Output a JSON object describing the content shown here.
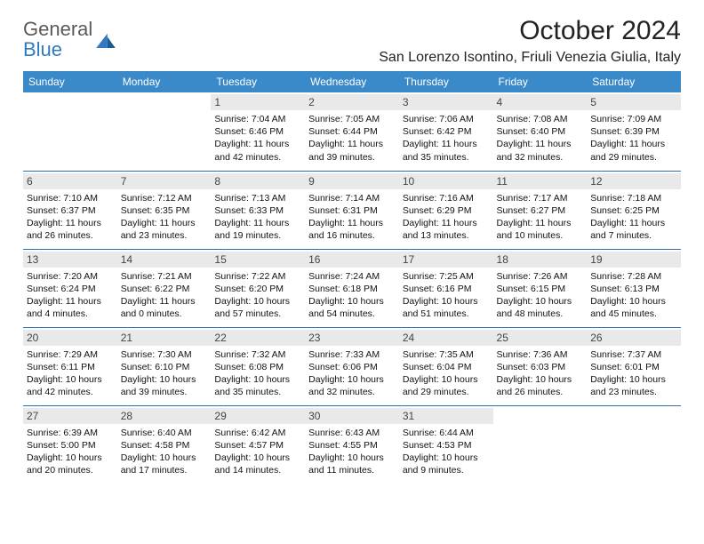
{
  "logo": {
    "text_general": "General",
    "text_blue": "Blue"
  },
  "title": "October 2024",
  "location": "San Lorenzo Isontino, Friuli Venezia Giulia, Italy",
  "colors": {
    "header_bg": "#3a89c9",
    "header_text": "#ffffff",
    "row_separator": "#2f6ea8",
    "daynum_bg": "#e9e9e9",
    "body_text": "#111111",
    "logo_general": "#5a5a5a",
    "logo_blue": "#2f7ac0"
  },
  "weekdays": [
    "Sunday",
    "Monday",
    "Tuesday",
    "Wednesday",
    "Thursday",
    "Friday",
    "Saturday"
  ],
  "weeks": [
    [
      null,
      null,
      {
        "day": "1",
        "sunrise": "7:04 AM",
        "sunset": "6:46 PM",
        "daylight": "11 hours and 42 minutes."
      },
      {
        "day": "2",
        "sunrise": "7:05 AM",
        "sunset": "6:44 PM",
        "daylight": "11 hours and 39 minutes."
      },
      {
        "day": "3",
        "sunrise": "7:06 AM",
        "sunset": "6:42 PM",
        "daylight": "11 hours and 35 minutes."
      },
      {
        "day": "4",
        "sunrise": "7:08 AM",
        "sunset": "6:40 PM",
        "daylight": "11 hours and 32 minutes."
      },
      {
        "day": "5",
        "sunrise": "7:09 AM",
        "sunset": "6:39 PM",
        "daylight": "11 hours and 29 minutes."
      }
    ],
    [
      {
        "day": "6",
        "sunrise": "7:10 AM",
        "sunset": "6:37 PM",
        "daylight": "11 hours and 26 minutes."
      },
      {
        "day": "7",
        "sunrise": "7:12 AM",
        "sunset": "6:35 PM",
        "daylight": "11 hours and 23 minutes."
      },
      {
        "day": "8",
        "sunrise": "7:13 AM",
        "sunset": "6:33 PM",
        "daylight": "11 hours and 19 minutes."
      },
      {
        "day": "9",
        "sunrise": "7:14 AM",
        "sunset": "6:31 PM",
        "daylight": "11 hours and 16 minutes."
      },
      {
        "day": "10",
        "sunrise": "7:16 AM",
        "sunset": "6:29 PM",
        "daylight": "11 hours and 13 minutes."
      },
      {
        "day": "11",
        "sunrise": "7:17 AM",
        "sunset": "6:27 PM",
        "daylight": "11 hours and 10 minutes."
      },
      {
        "day": "12",
        "sunrise": "7:18 AM",
        "sunset": "6:25 PM",
        "daylight": "11 hours and 7 minutes."
      }
    ],
    [
      {
        "day": "13",
        "sunrise": "7:20 AM",
        "sunset": "6:24 PM",
        "daylight": "11 hours and 4 minutes."
      },
      {
        "day": "14",
        "sunrise": "7:21 AM",
        "sunset": "6:22 PM",
        "daylight": "11 hours and 0 minutes."
      },
      {
        "day": "15",
        "sunrise": "7:22 AM",
        "sunset": "6:20 PM",
        "daylight": "10 hours and 57 minutes."
      },
      {
        "day": "16",
        "sunrise": "7:24 AM",
        "sunset": "6:18 PM",
        "daylight": "10 hours and 54 minutes."
      },
      {
        "day": "17",
        "sunrise": "7:25 AM",
        "sunset": "6:16 PM",
        "daylight": "10 hours and 51 minutes."
      },
      {
        "day": "18",
        "sunrise": "7:26 AM",
        "sunset": "6:15 PM",
        "daylight": "10 hours and 48 minutes."
      },
      {
        "day": "19",
        "sunrise": "7:28 AM",
        "sunset": "6:13 PM",
        "daylight": "10 hours and 45 minutes."
      }
    ],
    [
      {
        "day": "20",
        "sunrise": "7:29 AM",
        "sunset": "6:11 PM",
        "daylight": "10 hours and 42 minutes."
      },
      {
        "day": "21",
        "sunrise": "7:30 AM",
        "sunset": "6:10 PM",
        "daylight": "10 hours and 39 minutes."
      },
      {
        "day": "22",
        "sunrise": "7:32 AM",
        "sunset": "6:08 PM",
        "daylight": "10 hours and 35 minutes."
      },
      {
        "day": "23",
        "sunrise": "7:33 AM",
        "sunset": "6:06 PM",
        "daylight": "10 hours and 32 minutes."
      },
      {
        "day": "24",
        "sunrise": "7:35 AM",
        "sunset": "6:04 PM",
        "daylight": "10 hours and 29 minutes."
      },
      {
        "day": "25",
        "sunrise": "7:36 AM",
        "sunset": "6:03 PM",
        "daylight": "10 hours and 26 minutes."
      },
      {
        "day": "26",
        "sunrise": "7:37 AM",
        "sunset": "6:01 PM",
        "daylight": "10 hours and 23 minutes."
      }
    ],
    [
      {
        "day": "27",
        "sunrise": "6:39 AM",
        "sunset": "5:00 PM",
        "daylight": "10 hours and 20 minutes."
      },
      {
        "day": "28",
        "sunrise": "6:40 AM",
        "sunset": "4:58 PM",
        "daylight": "10 hours and 17 minutes."
      },
      {
        "day": "29",
        "sunrise": "6:42 AM",
        "sunset": "4:57 PM",
        "daylight": "10 hours and 14 minutes."
      },
      {
        "day": "30",
        "sunrise": "6:43 AM",
        "sunset": "4:55 PM",
        "daylight": "10 hours and 11 minutes."
      },
      {
        "day": "31",
        "sunrise": "6:44 AM",
        "sunset": "4:53 PM",
        "daylight": "10 hours and 9 minutes."
      },
      null,
      null
    ]
  ],
  "labels": {
    "sunrise": "Sunrise:",
    "sunset": "Sunset:",
    "daylight": "Daylight:"
  }
}
